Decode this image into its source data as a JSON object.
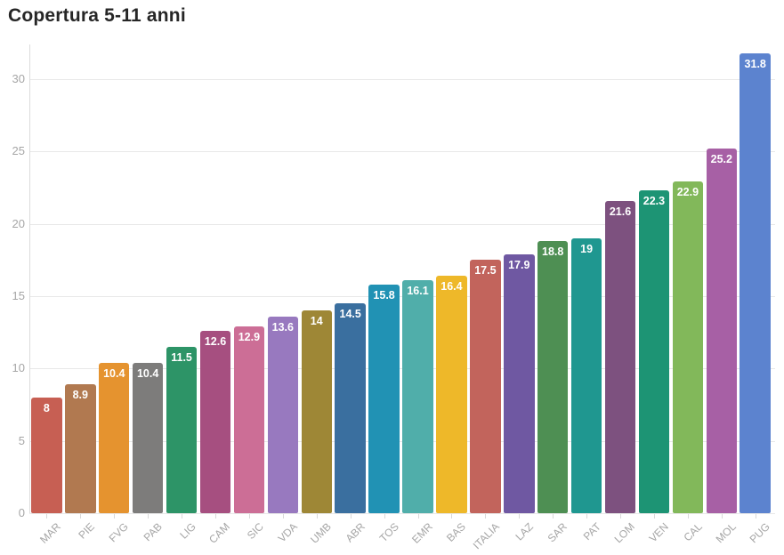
{
  "title": "Copertura 5-11 anni",
  "chart_data": {
    "type": "bar",
    "title": "Copertura 5-11 anni",
    "categories": [
      "MAR",
      "PIE",
      "FVG",
      "PAB",
      "LIG",
      "CAM",
      "SIC",
      "VDA",
      "UMB",
      "ABR",
      "TOS",
      "EMR",
      "BAS",
      "ITALIA",
      "LAZ",
      "SAR",
      "PAT",
      "LOM",
      "VEN",
      "CAL",
      "MOL",
      "PUG"
    ],
    "values": [
      8,
      8.9,
      10.4,
      10.4,
      11.5,
      12.6,
      12.9,
      13.6,
      14,
      14.5,
      15.8,
      16.1,
      16.4,
      17.5,
      17.9,
      18.8,
      19,
      21.6,
      22.3,
      22.9,
      25.2,
      31.8
    ],
    "value_labels": [
      "8",
      "8.9",
      "10.4",
      "10.4",
      "11.5",
      "12.6",
      "12.9",
      "13.6",
      "14",
      "14.5",
      "15.8",
      "16.1",
      "16.4",
      "17.5",
      "17.9",
      "18.8",
      "19",
      "21.6",
      "22.3",
      "22.9",
      "25.2",
      "31.8"
    ],
    "bar_colors": [
      "#c75f53",
      "#b17950",
      "#e5932f",
      "#7d7c7b",
      "#2d9467",
      "#a64f80",
      "#cc6e96",
      "#9879bf",
      "#9e8736",
      "#3a6f9f",
      "#2192b4",
      "#50aeaa",
      "#eeb829",
      "#c2645c",
      "#6f58a2",
      "#4e8f53",
      "#1f9790",
      "#7d517f",
      "#1d9474",
      "#82b85a",
      "#a760a5",
      "#5c83cf"
    ],
    "xlabel": "",
    "ylabel": "",
    "ylim": [
      0,
      32.5
    ],
    "yticks": [
      0,
      5,
      10,
      15,
      20,
      25,
      30
    ],
    "grid": "horizontal",
    "legend": "none",
    "value_label_color": "#ffffff",
    "axis_text_color": "#a6a6a6",
    "gridline_color": "#e8e8e8",
    "title_color": "#262626"
  }
}
